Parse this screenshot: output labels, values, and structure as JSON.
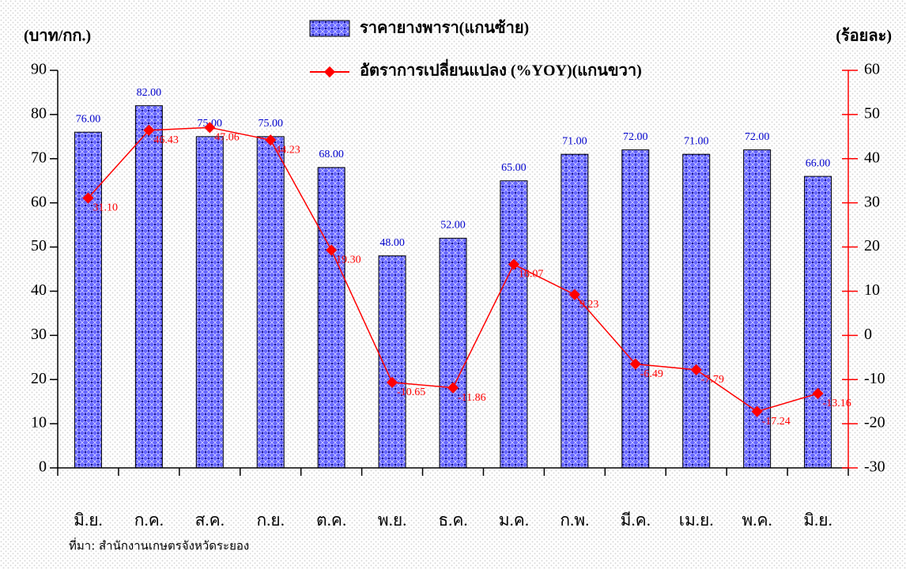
{
  "chart_data": {
    "type": "bar_line",
    "y_label": "(บาท/กก.)",
    "y2_label": "(ร้อยละ)",
    "source": "ที่มา: สำนักงานเกษตรจังหวัดระยอง",
    "categories": [
      "มิ.ย.",
      "ก.ค.",
      "ส.ค.",
      "ก.ย.",
      "ต.ค.",
      "พ.ย.",
      "ธ.ค.",
      "ม.ค.",
      "ก.พ.",
      "มี.ค.",
      "เม.ย.",
      "พ.ค.",
      "มิ.ย."
    ],
    "series": [
      {
        "name": "ราคายางพารา(แกนซ้าย)",
        "color": "#6666ff",
        "values": [
          76,
          82,
          75,
          75,
          68,
          48,
          52,
          65,
          71,
          72,
          71,
          72,
          66
        ],
        "value_labels": [
          "76.00",
          "82.00",
          "75.00",
          "75.00",
          "68.00",
          "48.00",
          "52.00",
          "65.00",
          "71.00",
          "72.00",
          "71.00",
          "72.00",
          "66.00"
        ]
      },
      {
        "name": "อัตราการเปลี่ยนแปลง (%YOY)(แกนขวา)",
        "color": "#ff0000",
        "axis": "y2",
        "values": [
          31.1,
          46.43,
          47.06,
          44.23,
          19.3,
          -10.65,
          -11.86,
          16.07,
          9.23,
          -6.49,
          -7.79,
          -17.24,
          -13.16
        ],
        "value_labels": [
          "31.10",
          "46.43",
          "47.06",
          "44.23",
          "19.30",
          "-10.65",
          "-11.86",
          "16.07",
          "9.23",
          "-6.49",
          "-7.79",
          "-17.24",
          "-13.16"
        ]
      }
    ],
    "ylim": [
      0,
      90
    ],
    "yticks": [
      0,
      10,
      20,
      30,
      40,
      50,
      60,
      70,
      80,
      90
    ],
    "y2lim": [
      -30,
      60
    ],
    "y2ticks": [
      -30,
      -20,
      -10,
      0,
      10,
      20,
      30,
      40,
      50,
      60
    ]
  }
}
